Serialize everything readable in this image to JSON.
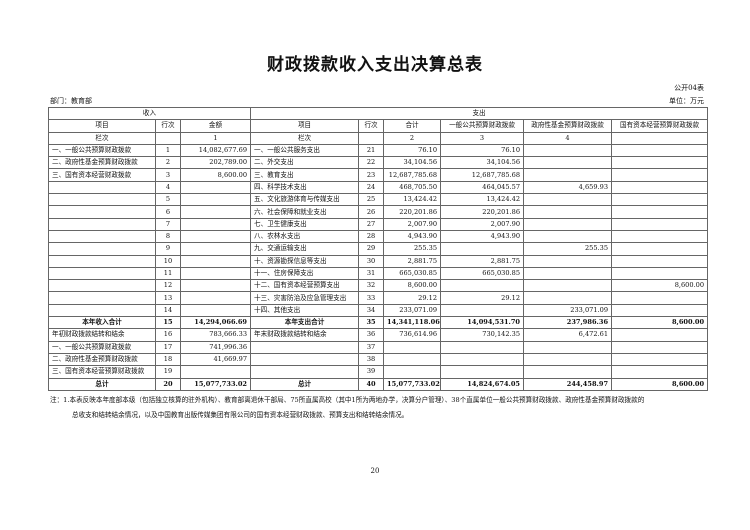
{
  "title": "财政拨款收入支出决算总表",
  "form_no": "公开04表",
  "department": "部门：教育部",
  "unit": "单位：万元",
  "header": {
    "income": "收入",
    "expense": "支出",
    "item": "项目",
    "line": "行次",
    "amount": "金额",
    "total": "合计",
    "general": "一般公共预算财政拨款",
    "govfund": "政府性基金预算财政拨款",
    "stateown": "国有资本经营预算财政拨款",
    "col_label": "栏次",
    "col1": "1",
    "col2": "2",
    "col3": "3",
    "col4": "4"
  },
  "rows": [
    [
      "一、一般公共预算财政拨款",
      "1",
      "14,082,677.69",
      "一、一般公共服务支出",
      "21",
      "76.10",
      "76.10",
      "",
      ""
    ],
    [
      "二、政府性基金预算财政拨款",
      "2",
      "202,789.00",
      "二、外交支出",
      "22",
      "34,104.56",
      "34,104.56",
      "",
      ""
    ],
    [
      "三、国有资本经营财政拨款",
      "3",
      "8,600.00",
      "三、教育支出",
      "23",
      "12,687,785.68",
      "12,687,785.68",
      "",
      ""
    ],
    [
      "",
      "4",
      "",
      "四、科学技术支出",
      "24",
      "468,705.50",
      "464,045.57",
      "4,659.93",
      ""
    ],
    [
      "",
      "5",
      "",
      "五、文化旅游体育与传媒支出",
      "25",
      "13,424.42",
      "13,424.42",
      "",
      ""
    ],
    [
      "",
      "6",
      "",
      "六、社会保障和就业支出",
      "26",
      "220,201.86",
      "220,201.86",
      "",
      ""
    ],
    [
      "",
      "7",
      "",
      "七、卫生健康支出",
      "27",
      "2,007.90",
      "2,007.90",
      "",
      ""
    ],
    [
      "",
      "8",
      "",
      "八、农林水支出",
      "28",
      "4,943.90",
      "4,943.90",
      "",
      ""
    ],
    [
      "",
      "9",
      "",
      "九、交通运输支出",
      "29",
      "255.35",
      "",
      "255.35",
      ""
    ],
    [
      "",
      "10",
      "",
      "十、资源勘探信息等支出",
      "30",
      "2,881.75",
      "2,881.75",
      "",
      ""
    ],
    [
      "",
      "11",
      "",
      "十一、住房保障支出",
      "31",
      "665,030.85",
      "665,030.85",
      "",
      ""
    ],
    [
      "",
      "12",
      "",
      "十二、国有资本经营预算支出",
      "32",
      "8,600.00",
      "",
      "",
      "8,600.00"
    ],
    [
      "",
      "13",
      "",
      "十三、灾害防治及应急管理支出",
      "33",
      "29.12",
      "29.12",
      "",
      ""
    ],
    [
      "",
      "14",
      "",
      "十四、其他支出",
      "34",
      "233,071.09",
      "",
      "233,071.09",
      ""
    ],
    [
      "本年收入合计",
      "15",
      "14,294,066.69",
      "本年支出合计",
      "35",
      "14,341,118.06",
      "14,094,531.70",
      "237,986.36",
      "8,600.00"
    ],
    [
      "年初财政拨款结转和结余",
      "16",
      "783,666.33",
      "年末财政拨款结转和结余",
      "36",
      "736,614.96",
      "730,142.35",
      "6,472.61",
      ""
    ],
    [
      "一、一般公共预算财政拨款",
      "17",
      "741,996.36",
      "",
      "37",
      "",
      "",
      "",
      ""
    ],
    [
      "二、政府性基金预算财政拨款",
      "18",
      "41,669.97",
      "",
      "38",
      "",
      "",
      "",
      ""
    ],
    [
      "三、国有资本经营预算财政拨款",
      "19",
      "",
      "",
      "39",
      "",
      "",
      "",
      ""
    ],
    [
      "总计",
      "20",
      "15,077,733.02",
      "总计",
      "40",
      "15,077,733.02",
      "14,824,674.05",
      "244,458.97",
      "8,600.00"
    ]
  ],
  "bold_rows": [
    14,
    19
  ],
  "note_line1": "注：1.本表反映本年度部本级（包括独立核算的驻外机构）、教育部离退休干部局、75所直属高校（其中1所为两地办学，决算分户管理）、38个直属单位一般公共预算财政拨款、政府性基金预算财政拨款的",
  "note_line2": "总收支和结转结余情况，以及中国教育出版传媒集团有限公司的国有资本经营财政拨款、预算支出和结转结余情况。",
  "page_number": "20"
}
